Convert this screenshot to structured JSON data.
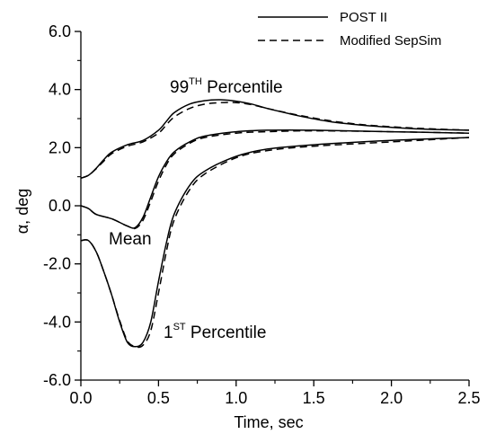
{
  "chart_data": {
    "type": "line",
    "title": "",
    "xlabel": "Time, sec",
    "ylabel": "α, deg",
    "xlim": [
      0.0,
      2.5
    ],
    "ylim": [
      -6.0,
      6.0
    ],
    "x_ticks": [
      "0.0",
      "0.5",
      "1.0",
      "1.5",
      "2.0",
      "2.5"
    ],
    "y_ticks": [
      "-6.0",
      "-4.0",
      "-2.0",
      "0.0",
      "2.0",
      "4.0",
      "6.0"
    ],
    "grid": false,
    "legend_position": "top-right",
    "legend": [
      {
        "label": "POST II",
        "style": "solid"
      },
      {
        "label": "Modified SepSim",
        "style": "dashed"
      }
    ],
    "annotations": {
      "p99": {
        "pre": "99",
        "sup": "TH",
        "post": " Percentile"
      },
      "mean": {
        "text": "Mean"
      },
      "p1": {
        "pre": "1",
        "sup": "ST",
        "post": " Percentile"
      }
    },
    "series": [
      {
        "name": "POST II",
        "group": "99TH Percentile",
        "style": "solid",
        "x": [
          0.0,
          0.05,
          0.1,
          0.15,
          0.2,
          0.3,
          0.4,
          0.5,
          0.55,
          0.6,
          0.7,
          0.8,
          0.9,
          1.0,
          1.1,
          1.2,
          1.4,
          1.6,
          1.8,
          2.0,
          2.2,
          2.5
        ],
        "y": [
          0.95,
          1.05,
          1.3,
          1.6,
          1.85,
          2.1,
          2.25,
          2.6,
          2.9,
          3.2,
          3.5,
          3.62,
          3.65,
          3.6,
          3.5,
          3.35,
          3.1,
          2.9,
          2.78,
          2.7,
          2.64,
          2.6
        ]
      },
      {
        "name": "Modified SepSim",
        "group": "99TH Percentile",
        "style": "dashed",
        "x": [
          0.0,
          0.05,
          0.1,
          0.15,
          0.2,
          0.3,
          0.4,
          0.5,
          0.55,
          0.6,
          0.7,
          0.8,
          0.9,
          1.0,
          1.1,
          1.2,
          1.4,
          1.6,
          1.8,
          2.0,
          2.2,
          2.5
        ],
        "y": [
          0.95,
          1.05,
          1.28,
          1.55,
          1.8,
          2.05,
          2.2,
          2.5,
          2.78,
          3.05,
          3.35,
          3.5,
          3.55,
          3.55,
          3.48,
          3.35,
          3.12,
          2.93,
          2.8,
          2.72,
          2.66,
          2.6
        ]
      },
      {
        "name": "POST II",
        "group": "Mean",
        "style": "solid",
        "x": [
          0.0,
          0.05,
          0.1,
          0.2,
          0.3,
          0.35,
          0.4,
          0.45,
          0.5,
          0.55,
          0.6,
          0.7,
          0.8,
          1.0,
          1.2,
          1.5,
          2.0,
          2.5
        ],
        "y": [
          0.0,
          -0.1,
          -0.3,
          -0.45,
          -0.7,
          -0.75,
          -0.4,
          0.3,
          1.0,
          1.5,
          1.85,
          2.2,
          2.4,
          2.55,
          2.6,
          2.6,
          2.55,
          2.5
        ]
      },
      {
        "name": "Modified SepSim",
        "group": "Mean",
        "style": "dashed",
        "x": [
          0.0,
          0.05,
          0.1,
          0.2,
          0.3,
          0.35,
          0.4,
          0.45,
          0.5,
          0.55,
          0.6,
          0.7,
          0.8,
          1.0,
          1.2,
          1.5,
          2.0,
          2.5
        ],
        "y": [
          0.0,
          -0.1,
          -0.3,
          -0.45,
          -0.7,
          -0.78,
          -0.5,
          0.15,
          0.85,
          1.4,
          1.78,
          2.15,
          2.35,
          2.5,
          2.55,
          2.58,
          2.55,
          2.5
        ]
      },
      {
        "name": "POST II",
        "group": "1ST Percentile",
        "style": "solid",
        "x": [
          0.0,
          0.05,
          0.1,
          0.15,
          0.2,
          0.25,
          0.3,
          0.35,
          0.4,
          0.45,
          0.5,
          0.55,
          0.6,
          0.7,
          0.8,
          1.0,
          1.2,
          1.5,
          2.0,
          2.5
        ],
        "y": [
          -1.2,
          -1.2,
          -1.6,
          -2.3,
          -3.1,
          -4.0,
          -4.7,
          -4.85,
          -4.7,
          -4.0,
          -2.6,
          -1.3,
          -0.3,
          0.7,
          1.2,
          1.7,
          1.95,
          2.1,
          2.25,
          2.35
        ]
      },
      {
        "name": "Modified SepSim",
        "group": "1ST Percentile",
        "style": "dashed",
        "x": [
          0.0,
          0.05,
          0.1,
          0.15,
          0.2,
          0.25,
          0.3,
          0.35,
          0.4,
          0.45,
          0.5,
          0.55,
          0.6,
          0.7,
          0.8,
          1.0,
          1.2,
          1.5,
          2.0,
          2.5
        ],
        "y": [
          -1.2,
          -1.2,
          -1.6,
          -2.3,
          -3.1,
          -3.95,
          -4.65,
          -4.85,
          -4.8,
          -4.3,
          -3.0,
          -1.6,
          -0.5,
          0.55,
          1.1,
          1.65,
          1.9,
          2.05,
          2.2,
          2.35
        ]
      }
    ]
  }
}
